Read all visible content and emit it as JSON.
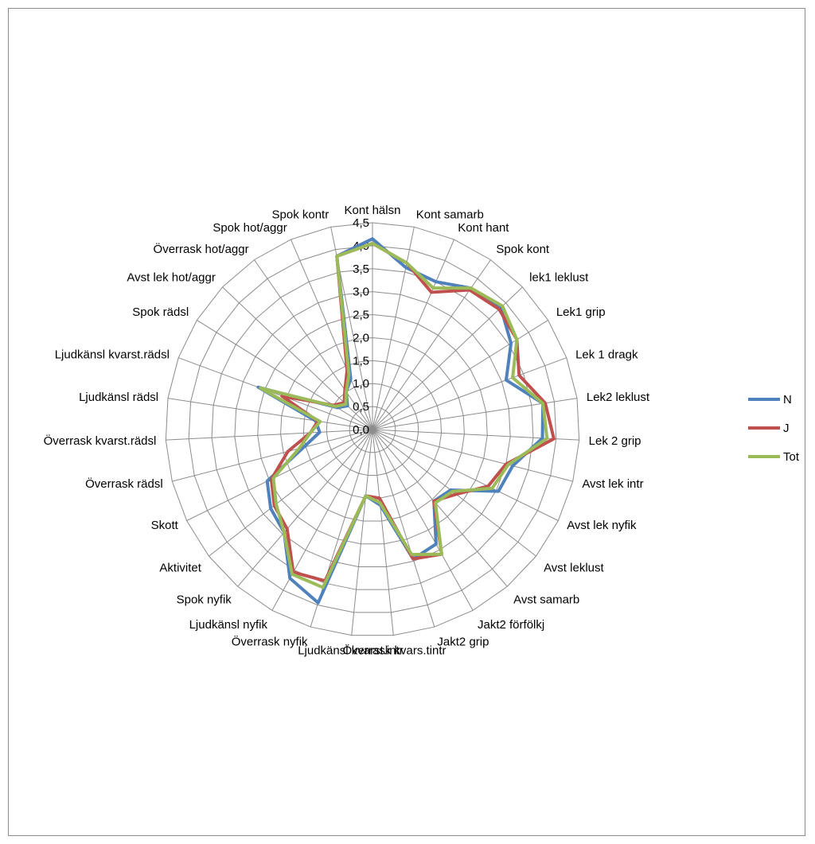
{
  "chart_data": {
    "type": "radar",
    "title": "",
    "categories": [
      "Kont hälsn",
      "Kont samarb",
      "Kont hant",
      "Spok kont",
      "lek1 leklust",
      "Lek1 grip",
      "Lek 1 dragk",
      "Lek2 leklust",
      "Lek 2 grip",
      "Avst lek intr",
      "Avst lek nyfik",
      "Avst leklust",
      "Avst samarb",
      "Jakt2 förfölkj",
      "Jakt2 grip",
      "Överrask kvars.tintr",
      "Ljudkänsl kvarst.intr",
      "Överrask nyfik",
      "Ljudkänsl nyfik",
      "Spok nyfik",
      "Aktivitet",
      "Skott",
      "Överrask rädsl",
      "Överrask kvarst.rädsl",
      "Ljudkänsl rädsl",
      "Ljudkänsl kvarst.rädsl",
      "Spok rädsl",
      "Avst lek hot/aggr",
      "Överrask hot/aggr",
      "Spok hot/aggr",
      "Spok kontr"
    ],
    "tick_labels": [
      "0,0",
      "0,5",
      "1,0",
      "1,5",
      "2,0",
      "2,5",
      "3,0",
      "3,5",
      "4,0",
      "4,5"
    ],
    "rlim": [
      0,
      4.5
    ],
    "grid": true,
    "legend_position": "right",
    "series": [
      {
        "name": "N",
        "color": "#4f81bd",
        "values": [
          4.15,
          3.6,
          3.5,
          3.75,
          3.85,
          3.55,
          3.1,
          3.75,
          3.7,
          3.15,
          3.05,
          2.15,
          2.05,
          2.85,
          2.95,
          1.65,
          1.45,
          3.95,
          3.7,
          2.95,
          2.8,
          2.55,
          1.55,
          1.15,
          1.25,
          2.65,
          0.9,
          0.75,
          1.0,
          1.2,
          3.85
        ]
      },
      {
        "name": "J",
        "color": "#c0504d",
        "values": [
          4.05,
          3.7,
          3.25,
          3.7,
          3.8,
          3.7,
          3.4,
          3.8,
          3.95,
          3.0,
          2.8,
          2.3,
          2.05,
          3.1,
          2.95,
          1.5,
          1.45,
          3.45,
          3.55,
          2.85,
          2.7,
          2.45,
          1.9,
          1.35,
          1.2,
          2.1,
          1.0,
          0.85,
          1.05,
          1.4,
          3.85
        ]
      },
      {
        "name": "Tot",
        "color": "#9bbb59",
        "values": [
          4.05,
          3.7,
          3.35,
          3.75,
          3.9,
          3.7,
          3.25,
          3.75,
          3.8,
          3.05,
          2.9,
          2.2,
          2.1,
          3.1,
          2.85,
          1.6,
          1.45,
          3.6,
          3.6,
          2.95,
          2.65,
          2.4,
          1.65,
          1.35,
          1.15,
          2.6,
          0.95,
          0.8,
          1.0,
          1.3,
          3.85
        ]
      }
    ]
  }
}
